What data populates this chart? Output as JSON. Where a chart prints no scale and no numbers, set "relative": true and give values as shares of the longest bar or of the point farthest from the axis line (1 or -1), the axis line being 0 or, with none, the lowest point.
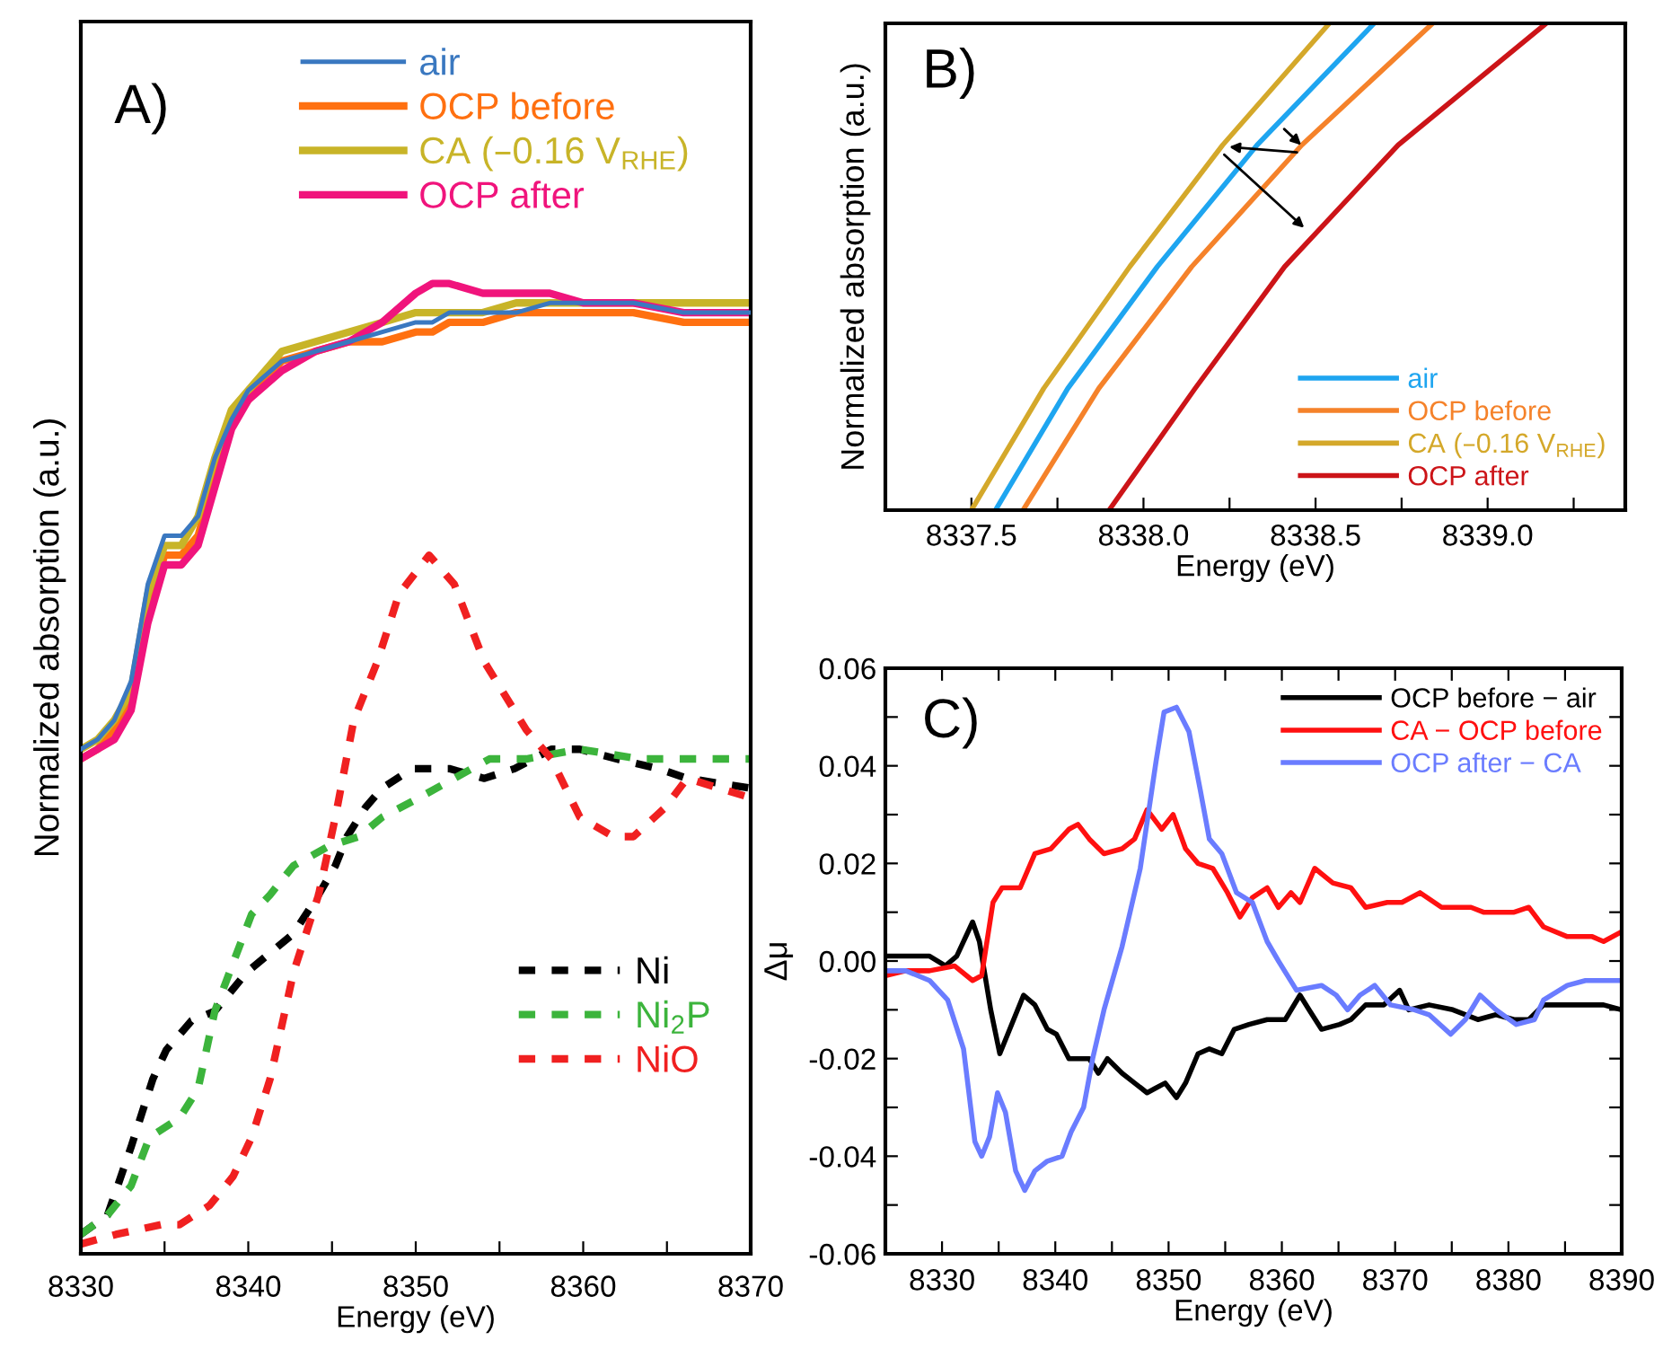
{
  "chart_data": [
    {
      "type": "line",
      "relative": true,
      "xlabel": "Energy (eV)",
      "ylabel": "Normalized absorption (a.u.)",
      "annotations": [
        "A)"
      ],
      "legend": "top",
      "grid": false,
      "marker": "none",
      "xlim": [
        8330,
        8370
      ],
      "xticks": [
        8330,
        {
          "value": 8335,
          "label": null
        },
        8340,
        {
          "value": 8345,
          "label": null
        },
        8350,
        {
          "value": 8355,
          "label": null
        },
        8360,
        {
          "value": 8365,
          "label": null
        },
        8370
      ],
      "x": [
        8330,
        8331,
        8332,
        8333,
        8334,
        8335,
        8336,
        8337,
        8338,
        8339,
        8340,
        8342,
        8344,
        8346,
        8348,
        8350,
        8351,
        8352,
        8354,
        8356,
        8358,
        8360,
        8363,
        8366,
        8370
      ],
      "series": [
        {
          "name": "air",
          "color": "#3a78c0",
          "line_style": "solid",
          "values": [
            0.52,
            0.53,
            0.55,
            0.59,
            0.69,
            0.74,
            0.74,
            0.76,
            0.82,
            0.86,
            0.89,
            0.92,
            0.93,
            0.94,
            0.95,
            0.96,
            0.96,
            0.97,
            0.97,
            0.97,
            0.98,
            0.98,
            0.98,
            0.97,
            0.97
          ]
        },
        {
          "name": "OCP before",
          "color": "#ff7010",
          "line_style": "solid",
          "values": [
            0.51,
            0.52,
            0.54,
            0.57,
            0.66,
            0.72,
            0.72,
            0.74,
            0.8,
            0.86,
            0.88,
            0.92,
            0.93,
            0.94,
            0.94,
            0.95,
            0.95,
            0.96,
            0.96,
            0.97,
            0.97,
            0.97,
            0.97,
            0.96,
            0.96
          ]
        },
        {
          "name": "CA (–0.16 V$_{RHE}$)",
          "color": "#c8b428",
          "line_style": "solid",
          "values": [
            0.52,
            0.53,
            0.55,
            0.58,
            0.68,
            0.73,
            0.73,
            0.76,
            0.82,
            0.87,
            0.89,
            0.93,
            0.94,
            0.95,
            0.96,
            0.97,
            0.97,
            0.97,
            0.97,
            0.98,
            0.98,
            0.98,
            0.98,
            0.98,
            0.98
          ]
        },
        {
          "name": "OCP after",
          "color": "#f0147c",
          "line_style": "solid",
          "values": [
            0.51,
            0.52,
            0.53,
            0.56,
            0.65,
            0.71,
            0.71,
            0.73,
            0.79,
            0.85,
            0.88,
            0.91,
            0.93,
            0.94,
            0.96,
            0.99,
            1.0,
            1.0,
            0.99,
            0.99,
            0.99,
            0.98,
            0.98,
            0.97,
            0.97
          ]
        },
        {
          "name": "Ni",
          "color": "#000000",
          "line_style": "dashed",
          "x": [
            8330,
            8331.6,
            8333,
            8334.3,
            8335.1,
            8336.6,
            8338,
            8339.9,
            8341.3,
            8342.7,
            8344.2,
            8345.2,
            8345.9,
            8347,
            8348,
            8349.8,
            8352,
            8354.1,
            8355.9,
            8358.1,
            8359.8,
            8362,
            8364.5,
            8366.2,
            8370
          ],
          "values": [
            0.02,
            0.04,
            0.11,
            0.18,
            0.21,
            0.24,
            0.25,
            0.29,
            0.31,
            0.33,
            0.37,
            0.4,
            0.43,
            0.46,
            0.48,
            0.5,
            0.5,
            0.49,
            0.5,
            0.52,
            0.52,
            0.51,
            0.5,
            0.49,
            0.48
          ]
        },
        {
          "name": "Ni$_{2}$P",
          "color": "#3cb43c",
          "line_style": "dashed",
          "x": [
            8330,
            8331.6,
            8333,
            8334.1,
            8335.9,
            8337,
            8338,
            8339.1,
            8340.2,
            8341.3,
            8342.7,
            8344.8,
            8346.6,
            8348,
            8350.2,
            8352.3,
            8354.4,
            8356.6,
            8359.8,
            8363.4,
            8370
          ],
          "values": [
            0.02,
            0.04,
            0.07,
            0.12,
            0.14,
            0.17,
            0.25,
            0.3,
            0.35,
            0.37,
            0.4,
            0.42,
            0.43,
            0.45,
            0.47,
            0.49,
            0.51,
            0.51,
            0.52,
            0.51,
            0.51
          ]
        },
        {
          "name": "NiO",
          "color": "#f02020",
          "line_style": "dashed",
          "x": [
            8330,
            8332.1,
            8334.8,
            8335.9,
            8337.7,
            8339.1,
            8340.2,
            8341.3,
            8342.7,
            8344.2,
            8345.2,
            8346.3,
            8347.7,
            8349,
            8350.8,
            8352.3,
            8354.1,
            8356.6,
            8358.1,
            8359.8,
            8361.8,
            8363,
            8364.9,
            8366.2,
            8370
          ],
          "values": [
            0.01,
            0.02,
            0.03,
            0.03,
            0.05,
            0.08,
            0.12,
            0.18,
            0.29,
            0.37,
            0.45,
            0.55,
            0.61,
            0.68,
            0.72,
            0.69,
            0.61,
            0.54,
            0.51,
            0.45,
            0.43,
            0.43,
            0.46,
            0.49,
            0.47
          ]
        }
      ]
    },
    {
      "type": "line",
      "relative": true,
      "xlabel": "Energy (eV)",
      "ylabel": "Normalized absorption (a.u.)",
      "annotations": [
        "B)"
      ],
      "legend": "bottom right",
      "grid": false,
      "marker": "none",
      "xlim": [
        8337.25,
        8339.4
      ],
      "xticks": [
        8337.5,
        {
          "value": 8337.75,
          "label": null
        },
        {
          "value": 8338.0,
          "label": "8338.0"
        },
        {
          "value": 8338.25,
          "label": null
        },
        8338.5,
        {
          "value": 8338.75,
          "label": null
        },
        {
          "value": 8339.0,
          "label": "8339.0"
        },
        {
          "value": 8339.25,
          "label": null
        }
      ],
      "series": [
        {
          "name": "air",
          "color": "#1ea5f0",
          "x": [
            8337.57,
            8337.78,
            8338.04,
            8338.33,
            8338.67
          ],
          "values": [
            0,
            0.25,
            0.5,
            0.75,
            1
          ]
        },
        {
          "name": "OCP before",
          "color": "#f5822a",
          "x": [
            8337.65,
            8337.87,
            8338.14,
            8338.46,
            8338.84
          ],
          "values": [
            0,
            0.25,
            0.5,
            0.75,
            1
          ]
        },
        {
          "name": "CA (–0.16 V$_{RHE}$)",
          "color": "#d4a82a",
          "x": [
            8337.5,
            8337.71,
            8337.96,
            8338.23,
            8338.54
          ],
          "values": [
            0,
            0.25,
            0.5,
            0.75,
            1
          ]
        },
        {
          "name": "OCP after",
          "color": "#cc1418",
          "x": [
            8337.9,
            8338.15,
            8338.41,
            8338.74,
            8339.17
          ],
          "values": [
            0,
            0.25,
            0.5,
            0.75,
            1
          ]
        }
      ]
    },
    {
      "type": "line",
      "xlabel": "Energy (eV)",
      "ylabel": "Δμ",
      "annotations": [
        "C)"
      ],
      "legend": "top right",
      "grid": false,
      "marker": "none",
      "xlim": [
        8325,
        8390
      ],
      "xticks": [
        {
          "value": 8325,
          "label": null
        },
        8330,
        {
          "value": 8335,
          "label": null
        },
        8340,
        {
          "value": 8345,
          "label": null
        },
        8350,
        {
          "value": 8355,
          "label": null
        },
        8360,
        {
          "value": 8365,
          "label": null
        },
        8370,
        {
          "value": 8375,
          "label": null
        },
        8380,
        {
          "value": 8385,
          "label": null
        },
        8390
      ],
      "ylim": [
        -0.06,
        0.06
      ],
      "yticks": [
        {
          "value": -0.06,
          "label": "-0.06"
        },
        {
          "value": -0.05,
          "label": null
        },
        {
          "value": -0.04,
          "label": "-0.04"
        },
        {
          "value": -0.03,
          "label": null
        },
        {
          "value": -0.02,
          "label": "-0.02"
        },
        {
          "value": -0.01,
          "label": null
        },
        {
          "value": 0,
          "label": "0.00"
        },
        {
          "value": 0.01,
          "label": null
        },
        {
          "value": 0.02,
          "label": "0.02"
        },
        {
          "value": 0.03,
          "label": null
        },
        {
          "value": 0.04,
          "label": "0.04"
        },
        {
          "value": 0.05,
          "label": null
        },
        {
          "value": 0.06,
          "label": "0.06"
        }
      ],
      "series": [
        {
          "name": "OCP before − air",
          "color": "#000000",
          "x": [
            8325,
            8326.8,
            8328.9,
            8330.3,
            8331.3,
            8332.7,
            8333.3,
            8334.3,
            8335.1,
            8335.8,
            8337.2,
            8338.2,
            8339.3,
            8340.1,
            8341.2,
            8342.2,
            8343.0,
            8343.8,
            8344.6,
            8345.9,
            8347.0,
            8348.1,
            8348.9,
            8349.7,
            8350.7,
            8351.5,
            8352.6,
            8353.6,
            8354.7,
            8355.8,
            8357.1,
            8358.7,
            8360.3,
            8361.6,
            8362.4,
            8363.5,
            8365.1,
            8366.1,
            8367.4,
            8369.0,
            8370.4,
            8371.2,
            8373.0,
            8375.1,
            8377.3,
            8378.9,
            8380.5,
            8381.8,
            8383.1,
            8385.8,
            8388.4,
            8390
          ],
          "values": [
            0.001,
            0.001,
            0.001,
            -0.001,
            0.001,
            0.008,
            0.004,
            -0.01,
            -0.019,
            -0.015,
            -0.007,
            -0.009,
            -0.014,
            -0.015,
            -0.02,
            -0.02,
            -0.02,
            -0.023,
            -0.02,
            -0.023,
            -0.025,
            -0.027,
            -0.026,
            -0.025,
            -0.028,
            -0.025,
            -0.019,
            -0.018,
            -0.019,
            -0.014,
            -0.013,
            -0.012,
            -0.012,
            -0.007,
            -0.01,
            -0.014,
            -0.013,
            -0.012,
            -0.009,
            -0.009,
            -0.006,
            -0.01,
            -0.009,
            -0.01,
            -0.012,
            -0.011,
            -0.012,
            -0.012,
            -0.009,
            -0.009,
            -0.009,
            -0.01
          ]
        },
        {
          "name": "CA − OCP before",
          "color": "#ff1010",
          "x": [
            8325,
            8326.8,
            8328.9,
            8331.1,
            8332.7,
            8333.5,
            8334.5,
            8335.3,
            8336.9,
            8338.2,
            8339.6,
            8341.2,
            8342.0,
            8343.0,
            8344.3,
            8345.9,
            8347.0,
            8348.1,
            8349.4,
            8350.4,
            8351.5,
            8352.6,
            8353.9,
            8355.2,
            8356.3,
            8357.4,
            8358.7,
            8359.7,
            8360.8,
            8361.6,
            8362.9,
            8364.5,
            8366.1,
            8367.4,
            8369.3,
            8370.6,
            8372.2,
            8374.1,
            8375.7,
            8376.7,
            8377.8,
            8380.5,
            8381.8,
            8383.1,
            8385.2,
            8387.4,
            8388.4,
            8390
          ],
          "values": [
            -0.003,
            -0.002,
            -0.002,
            -0.001,
            -0.004,
            -0.003,
            0.012,
            0.015,
            0.015,
            0.022,
            0.023,
            0.027,
            0.028,
            0.025,
            0.022,
            0.023,
            0.025,
            0.031,
            0.027,
            0.03,
            0.023,
            0.02,
            0.019,
            0.014,
            0.009,
            0.013,
            0.015,
            0.011,
            0.014,
            0.012,
            0.019,
            0.016,
            0.015,
            0.011,
            0.012,
            0.012,
            0.014,
            0.011,
            0.011,
            0.011,
            0.01,
            0.01,
            0.011,
            0.007,
            0.005,
            0.005,
            0.004,
            0.006
          ]
        },
        {
          "name": "OCP after − CA",
          "color": "#6a7cff",
          "x": [
            8325,
            8326.8,
            8328.9,
            8330.5,
            8331.9,
            8332.9,
            8333.5,
            8334.2,
            8334.9,
            8335.6,
            8336.5,
            8337.3,
            8338.2,
            8339.3,
            8340.6,
            8341.4,
            8342.5,
            8343.3,
            8344.3,
            8345.9,
            8347.5,
            8348.9,
            8349.6,
            8350.7,
            8351.8,
            8352.8,
            8353.6,
            8354.7,
            8356.0,
            8357.4,
            8358.7,
            8359.7,
            8361.3,
            8363.5,
            8364.8,
            8365.8,
            8366.9,
            8368.2,
            8369.6,
            8371.7,
            8373.0,
            8374.9,
            8376.2,
            8377.5,
            8378.9,
            8380.7,
            8382.3,
            8383.1,
            8385.2,
            8386.8,
            8388.4,
            8390
          ],
          "values": [
            -0.002,
            -0.002,
            -0.004,
            -0.008,
            -0.018,
            -0.037,
            -0.04,
            -0.036,
            -0.027,
            -0.031,
            -0.043,
            -0.047,
            -0.043,
            -0.041,
            -0.04,
            -0.035,
            -0.03,
            -0.02,
            -0.01,
            0.003,
            0.019,
            0.041,
            0.051,
            0.052,
            0.047,
            0.035,
            0.025,
            0.022,
            0.014,
            0.012,
            0.004,
            0.0,
            -0.006,
            -0.005,
            -0.007,
            -0.01,
            -0.007,
            -0.005,
            -0.009,
            -0.01,
            -0.011,
            -0.015,
            -0.012,
            -0.007,
            -0.01,
            -0.013,
            -0.012,
            -0.008,
            -0.005,
            -0.004,
            -0.004,
            -0.004
          ]
        }
      ]
    }
  ]
}
